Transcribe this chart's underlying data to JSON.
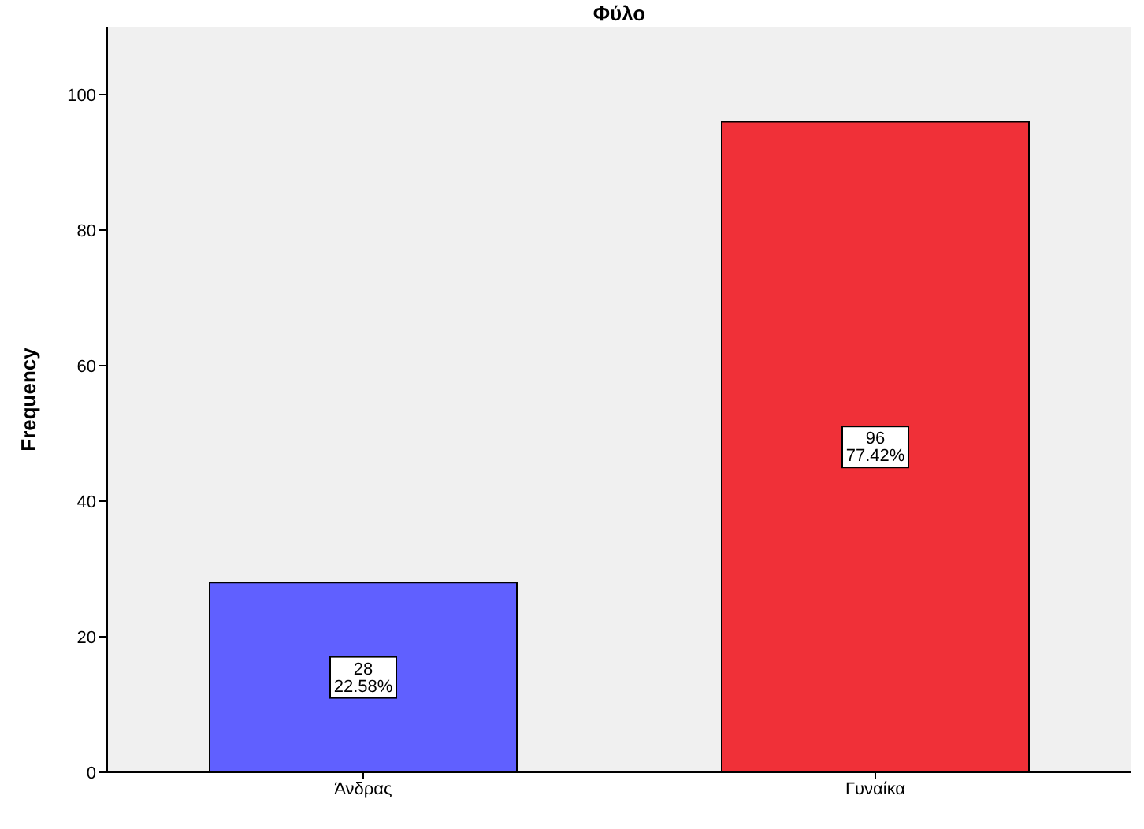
{
  "chart_data": {
    "type": "bar",
    "title": "Φύλο",
    "ylabel": "Frequency",
    "categories": [
      "Άνδρας",
      "Γυναίκα"
    ],
    "values": [
      28,
      96
    ],
    "colors": [
      "#6060ff",
      "#f03038"
    ],
    "value_labels": [
      "28\n22.58%",
      "96\n77.42%"
    ],
    "ylim": [
      0,
      110
    ],
    "yticks": [
      0,
      20,
      40,
      60,
      80,
      100
    ]
  }
}
